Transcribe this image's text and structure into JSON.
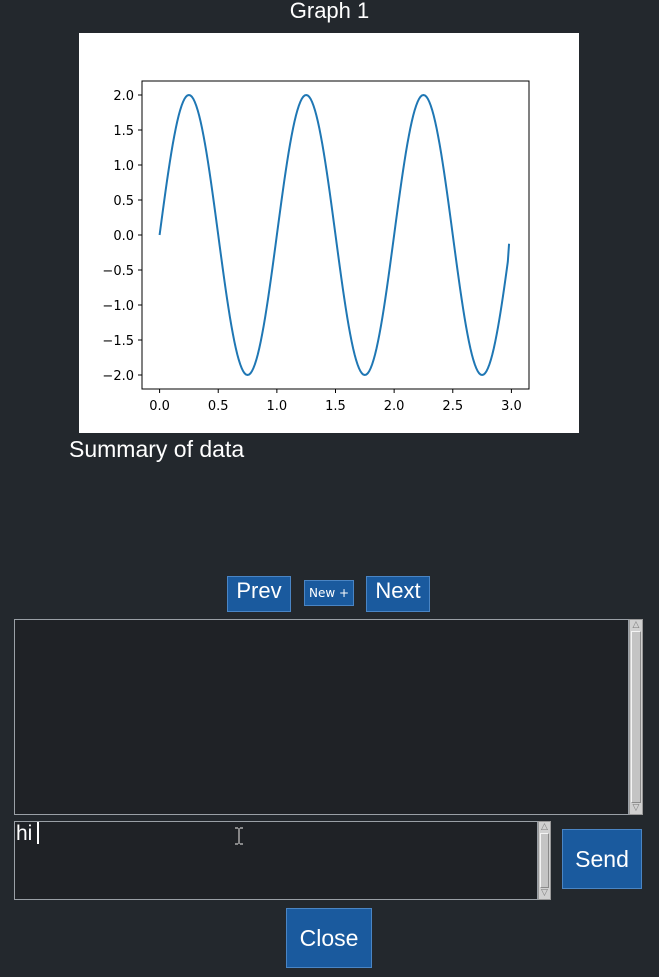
{
  "graph": {
    "title": "Graph 1"
  },
  "chart_data": {
    "type": "line",
    "title": "",
    "xlabel": "",
    "ylabel": "",
    "xlim": [
      -0.15,
      3.15
    ],
    "ylim": [
      -2.2,
      2.2
    ],
    "xticks": [
      0.0,
      0.5,
      1.0,
      1.5,
      2.0,
      2.5,
      3.0
    ],
    "xtick_labels": [
      "0.0",
      "0.5",
      "1.0",
      "1.5",
      "2.0",
      "2.5",
      "3.0"
    ],
    "yticks": [
      2.0,
      1.5,
      1.0,
      0.5,
      0.0,
      -0.5,
      -1.0,
      -1.5,
      -2.0
    ],
    "ytick_labels": [
      "2.0",
      "1.5",
      "1.0",
      "0.5",
      "0.0",
      "−0.5",
      "−1.0",
      "−1.5",
      "−2.0"
    ],
    "grid": false,
    "line_color": "#1f77b4",
    "series": [
      {
        "x": [
          0.0,
          0.125,
          0.25,
          0.375,
          0.5,
          0.625,
          0.75,
          0.875,
          1.0,
          1.125,
          1.25,
          1.375,
          1.5,
          1.625,
          1.75,
          1.875,
          2.0,
          2.125,
          2.25,
          2.375,
          2.5,
          2.625,
          2.75,
          2.875,
          2.98
        ],
        "y": [
          0.0,
          1.414,
          2.0,
          1.414,
          0.0,
          -1.414,
          -2.0,
          -1.414,
          0.0,
          1.414,
          2.0,
          1.414,
          0.0,
          -1.414,
          -2.0,
          -1.414,
          0.0,
          1.414,
          2.0,
          1.414,
          0.0,
          -1.414,
          -2.0,
          -1.414,
          -0.125
        ]
      }
    ]
  },
  "summary_text": "Summary of data",
  "nav": {
    "prev_label": "Prev",
    "new_label": "New +",
    "next_label": "Next"
  },
  "chat": {
    "output_text": "",
    "input_value": "hi",
    "send_label": "Send"
  },
  "close_label": "Close",
  "colors": {
    "background": "#23282d",
    "button": "#1a5a9e",
    "field": "#1f2226"
  }
}
